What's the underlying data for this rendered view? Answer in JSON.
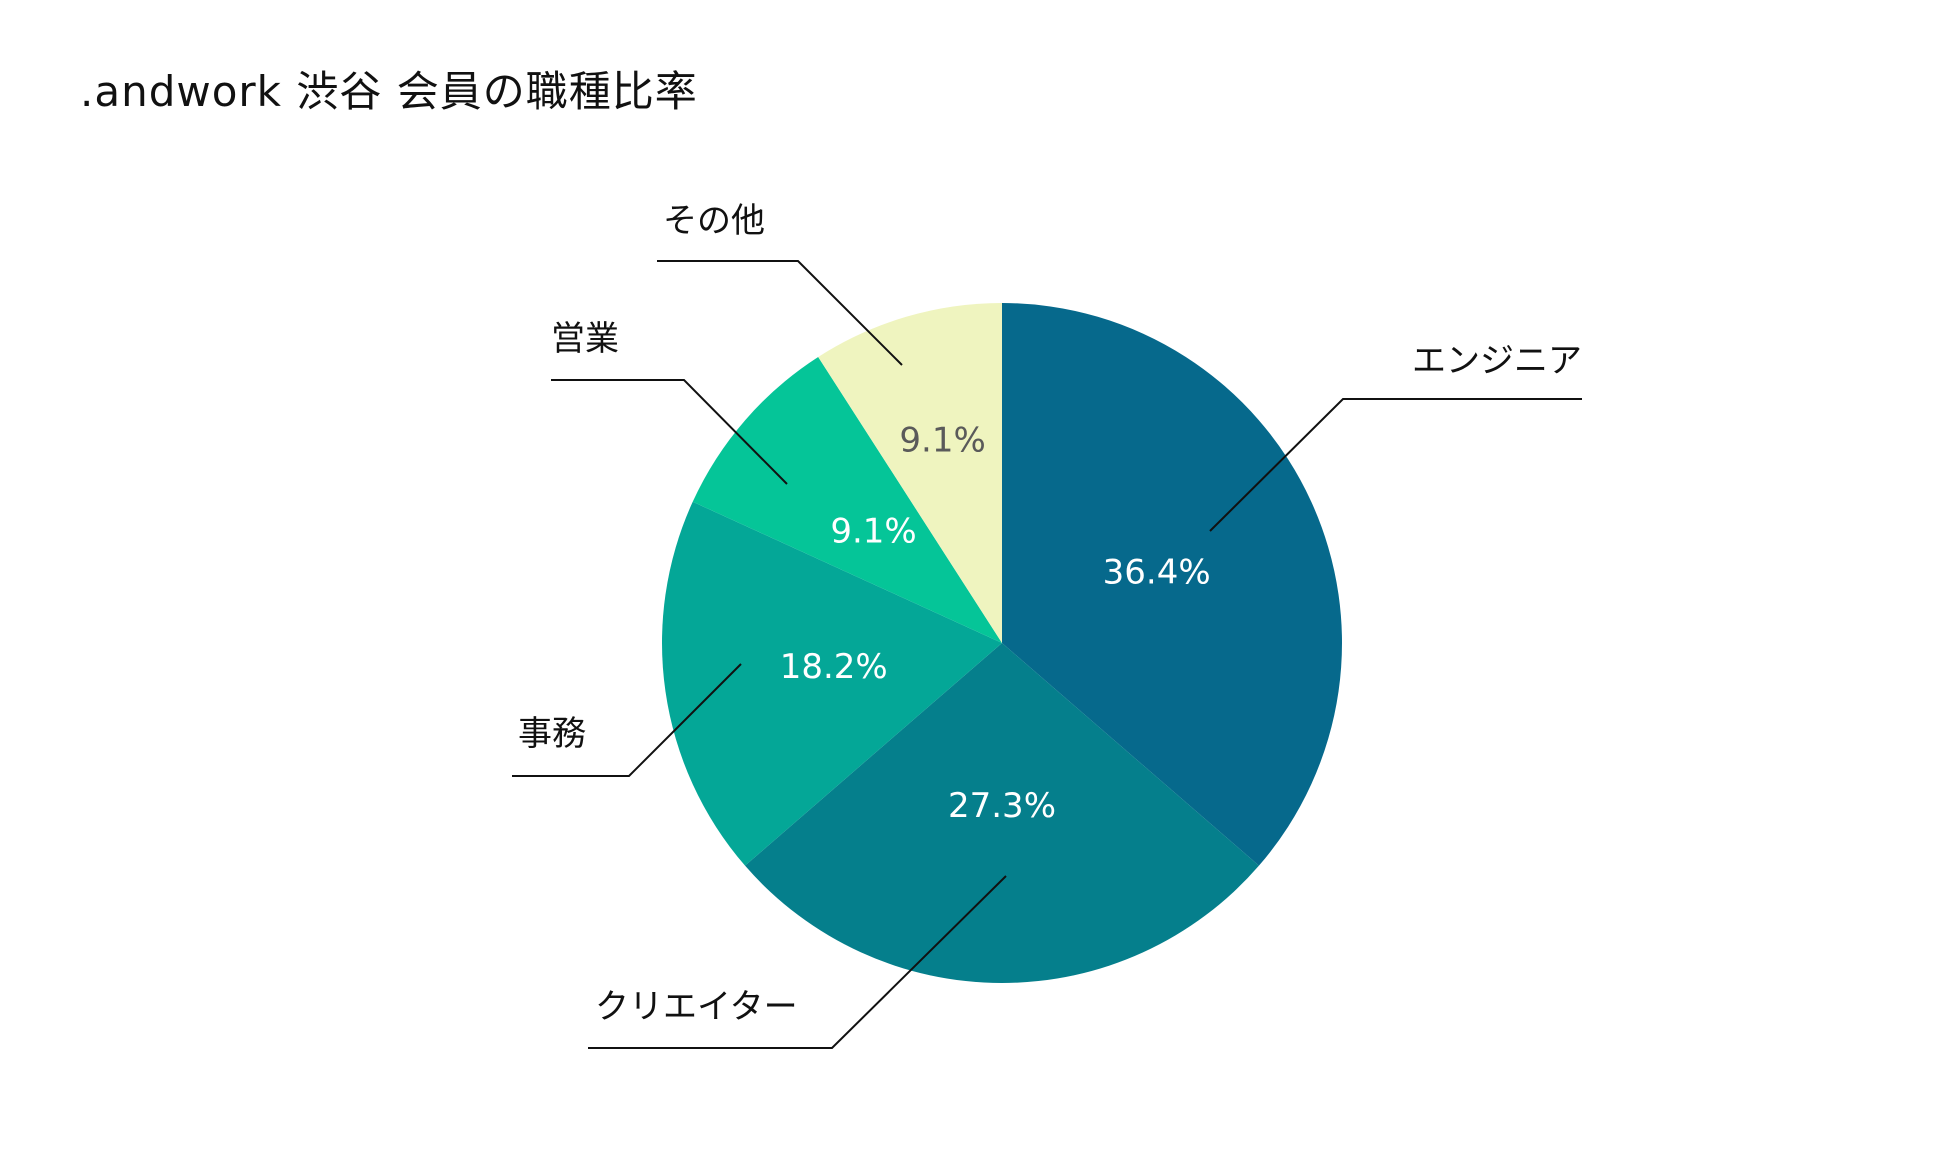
{
  "chart_data": {
    "type": "pie",
    "title": ".andwork 渋谷 会員の職種比率",
    "categories": [
      "エンジニア",
      "クリエイター",
      "事務",
      "営業",
      "その他"
    ],
    "values": [
      36.4,
      27.3,
      18.2,
      9.1,
      9.1
    ],
    "value_labels": [
      "36.4%",
      "27.3%",
      "18.2%",
      "9.1%",
      "9.1%"
    ],
    "colors": [
      "#06698c",
      "#057f8c",
      "#04a797",
      "#05c598",
      "#eff4bf"
    ],
    "label_colors": [
      "#ffffff",
      "#ffffff",
      "#ffffff",
      "#ffffff",
      "#5a5a5a"
    ],
    "start_angle_deg": 0,
    "direction": "clockwise",
    "legend": "none"
  }
}
